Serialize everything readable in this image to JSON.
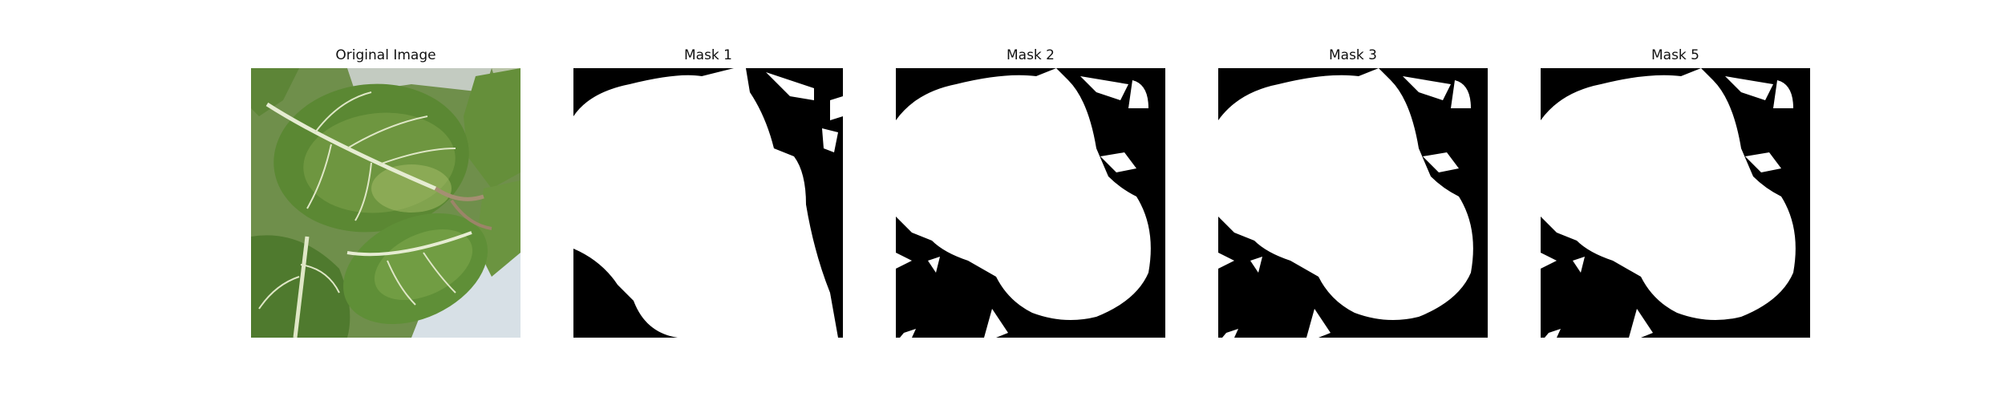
{
  "panels": [
    {
      "title": "Original Image",
      "kind": "photo"
    },
    {
      "title": "Mask 1",
      "kind": "mask"
    },
    {
      "title": "Mask 2",
      "kind": "mask"
    },
    {
      "title": "Mask 3",
      "kind": "mask"
    },
    {
      "title": "Mask 5",
      "kind": "mask"
    }
  ],
  "colors": {
    "mask_background": "#000000",
    "mask_foreground": "#ffffff",
    "leaf_dark": "#3d5e22",
    "leaf_mid": "#5f8a35",
    "leaf_light": "#9bb86a",
    "vein": "#e6ecd2",
    "pot_light": "#d7e0e6"
  }
}
